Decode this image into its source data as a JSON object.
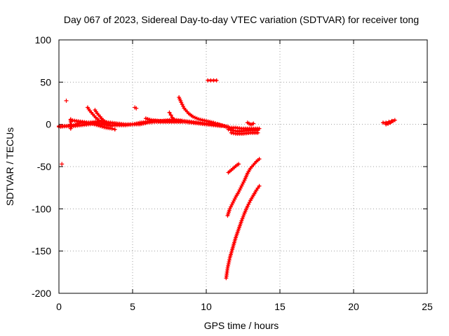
{
  "chart_data": {
    "type": "scatter",
    "title": "Day 067 of 2023, Sidereal Day-to-day VTEC variation (SDTVAR) for receiver tong",
    "xlabel": "GPS time / hours",
    "ylabel": "SDTVAR / TECUs",
    "xlim": [
      0,
      25
    ],
    "ylim": [
      -200,
      100
    ],
    "xticks": [
      0,
      5,
      10,
      15,
      20,
      25
    ],
    "yticks": [
      -200,
      -150,
      -100,
      -50,
      0,
      50,
      100
    ],
    "grid": true,
    "marker": "+",
    "series_color": "#ff0000",
    "segments": [
      {
        "name": "baseline-1",
        "points": [
          [
            0.0,
            -2
          ],
          [
            0.5,
            -2
          ],
          [
            1.0,
            -2
          ],
          [
            1.5,
            -1
          ],
          [
            2.0,
            0
          ],
          [
            2.5,
            1
          ],
          [
            3.0,
            0
          ],
          [
            3.5,
            -1
          ],
          [
            4.0,
            -1
          ],
          [
            4.5,
            -1
          ],
          [
            5.0,
            0
          ],
          [
            5.5,
            0
          ],
          [
            6.0,
            2
          ],
          [
            6.5,
            3
          ],
          [
            7.0,
            3
          ],
          [
            7.5,
            3
          ],
          [
            8.0,
            3
          ],
          [
            8.5,
            3
          ],
          [
            9.0,
            2
          ],
          [
            9.5,
            1
          ],
          [
            10.0,
            0
          ],
          [
            10.5,
            -1
          ],
          [
            11.0,
            -2
          ]
        ]
      },
      {
        "name": "baseline-2",
        "points": [
          [
            0.0,
            -3
          ],
          [
            0.5,
            -2
          ],
          [
            1.0,
            -1
          ],
          [
            1.5,
            2
          ],
          [
            2.0,
            2
          ],
          [
            2.5,
            3
          ],
          [
            3.0,
            3
          ],
          [
            3.5,
            2
          ],
          [
            4.0,
            1
          ],
          [
            4.5,
            0
          ],
          [
            5.0,
            0
          ],
          [
            5.5,
            2
          ],
          [
            6.0,
            3
          ],
          [
            6.5,
            4
          ],
          [
            7.0,
            4
          ],
          [
            7.5,
            5
          ],
          [
            8.0,
            5
          ],
          [
            8.5,
            4
          ],
          [
            9.0,
            3
          ],
          [
            9.5,
            2
          ],
          [
            10.0,
            1
          ],
          [
            10.5,
            0
          ],
          [
            11.0,
            -1
          ],
          [
            11.5,
            -3
          ]
        ]
      },
      {
        "name": "baseline-3",
        "points": [
          [
            0.8,
            5
          ],
          [
            1.2,
            4
          ],
          [
            1.6,
            3
          ],
          [
            2.0,
            2
          ],
          [
            2.4,
            0
          ],
          [
            2.8,
            -2
          ],
          [
            3.2,
            -4
          ],
          [
            3.6,
            -5
          ],
          [
            3.8,
            -6
          ]
        ]
      },
      {
        "name": "arc-2h",
        "points": [
          [
            1.95,
            20
          ],
          [
            2.1,
            16
          ],
          [
            2.3,
            12
          ],
          [
            2.5,
            8
          ],
          [
            2.7,
            5
          ],
          [
            3.0,
            2
          ],
          [
            3.3,
            0
          ]
        ]
      },
      {
        "name": "arc-2.5h",
        "points": [
          [
            2.45,
            17
          ],
          [
            2.6,
            13
          ],
          [
            2.8,
            9
          ],
          [
            3.0,
            5
          ],
          [
            3.3,
            1
          ],
          [
            3.6,
            -2
          ]
        ]
      },
      {
        "name": "arc-6h",
        "points": [
          [
            5.9,
            7
          ],
          [
            6.3,
            5
          ],
          [
            6.8,
            4
          ],
          [
            7.3,
            4
          ],
          [
            7.8,
            4
          ],
          [
            8.3,
            4
          ]
        ]
      },
      {
        "name": "arc-7.5h",
        "points": [
          [
            7.5,
            14
          ],
          [
            7.6,
            11
          ],
          [
            7.7,
            8
          ],
          [
            7.8,
            6
          ],
          [
            8.0,
            5
          ]
        ]
      },
      {
        "name": "arc-8h",
        "points": [
          [
            8.15,
            32
          ],
          [
            8.3,
            26
          ],
          [
            8.5,
            19
          ],
          [
            8.8,
            13
          ],
          [
            9.1,
            9
          ],
          [
            9.5,
            6
          ],
          [
            10.0,
            4
          ],
          [
            10.5,
            2
          ],
          [
            11.0,
            -1
          ]
        ]
      },
      {
        "name": "tail-11h",
        "points": [
          [
            10.8,
            0
          ],
          [
            11.2,
            -2
          ],
          [
            11.6,
            -4
          ],
          [
            12.0,
            -4
          ],
          [
            12.4,
            -5
          ],
          [
            12.8,
            -5
          ],
          [
            13.2,
            -5
          ],
          [
            13.6,
            -5
          ]
        ]
      },
      {
        "name": "tail-11.8h",
        "points": [
          [
            11.5,
            -6
          ],
          [
            11.8,
            -7
          ],
          [
            12.0,
            -8
          ],
          [
            12.5,
            -8
          ],
          [
            13.0,
            -7
          ],
          [
            13.5,
            -7
          ]
        ]
      },
      {
        "name": "tail-11.8h-b",
        "points": [
          [
            11.7,
            -10
          ],
          [
            12.0,
            -11
          ],
          [
            12.5,
            -11
          ],
          [
            13.0,
            -10
          ],
          [
            13.5,
            -10
          ]
        ]
      },
      {
        "name": "cluster-13h",
        "points": [
          [
            12.8,
            2
          ],
          [
            12.9,
            1
          ],
          [
            13.0,
            0
          ],
          [
            13.1,
            0
          ],
          [
            13.2,
            1
          ]
        ]
      },
      {
        "name": "isolated",
        "points": [
          [
            0.5,
            28
          ],
          [
            0.2,
            -47
          ],
          [
            5.15,
            20
          ],
          [
            5.25,
            19
          ]
        ]
      },
      {
        "name": "spur-0.8h",
        "points": [
          [
            0.8,
            -5
          ],
          [
            0.8,
            -3
          ],
          [
            0.8,
            0
          ],
          [
            0.8,
            3
          ],
          [
            0.8,
            6
          ]
        ]
      },
      {
        "name": "bar-10.2h",
        "points": [
          [
            10.1,
            52
          ],
          [
            10.3,
            52
          ],
          [
            10.5,
            52
          ],
          [
            10.7,
            52
          ]
        ]
      },
      {
        "name": "drop-11.5h",
        "points": [
          [
            11.5,
            -57
          ],
          [
            11.7,
            -54
          ],
          [
            11.9,
            -51
          ],
          [
            12.1,
            -48
          ],
          [
            12.2,
            -47
          ]
        ]
      },
      {
        "name": "drop-11.4h",
        "points": [
          [
            11.45,
            -108
          ],
          [
            11.6,
            -100
          ],
          [
            11.8,
            -93
          ],
          [
            12.0,
            -86
          ],
          [
            12.2,
            -80
          ],
          [
            12.4,
            -73
          ],
          [
            12.6,
            -66
          ],
          [
            12.8,
            -58
          ],
          [
            13.0,
            -52
          ],
          [
            13.2,
            -48
          ],
          [
            13.4,
            -44
          ],
          [
            13.6,
            -41
          ]
        ]
      },
      {
        "name": "drop-11.3h",
        "points": [
          [
            11.35,
            -182
          ],
          [
            11.45,
            -170
          ],
          [
            11.6,
            -158
          ],
          [
            11.8,
            -146
          ],
          [
            12.0,
            -134
          ],
          [
            12.2,
            -124
          ],
          [
            12.4,
            -114
          ],
          [
            12.6,
            -105
          ],
          [
            12.8,
            -97
          ],
          [
            13.0,
            -90
          ],
          [
            13.2,
            -84
          ],
          [
            13.4,
            -78
          ],
          [
            13.6,
            -73
          ]
        ]
      },
      {
        "name": "cluster-22h",
        "points": [
          [
            22.0,
            2
          ],
          [
            22.2,
            2
          ],
          [
            22.4,
            3
          ],
          [
            22.6,
            4
          ],
          [
            22.8,
            5
          ],
          [
            22.2,
            0
          ],
          [
            22.5,
            2
          ]
        ]
      }
    ]
  }
}
